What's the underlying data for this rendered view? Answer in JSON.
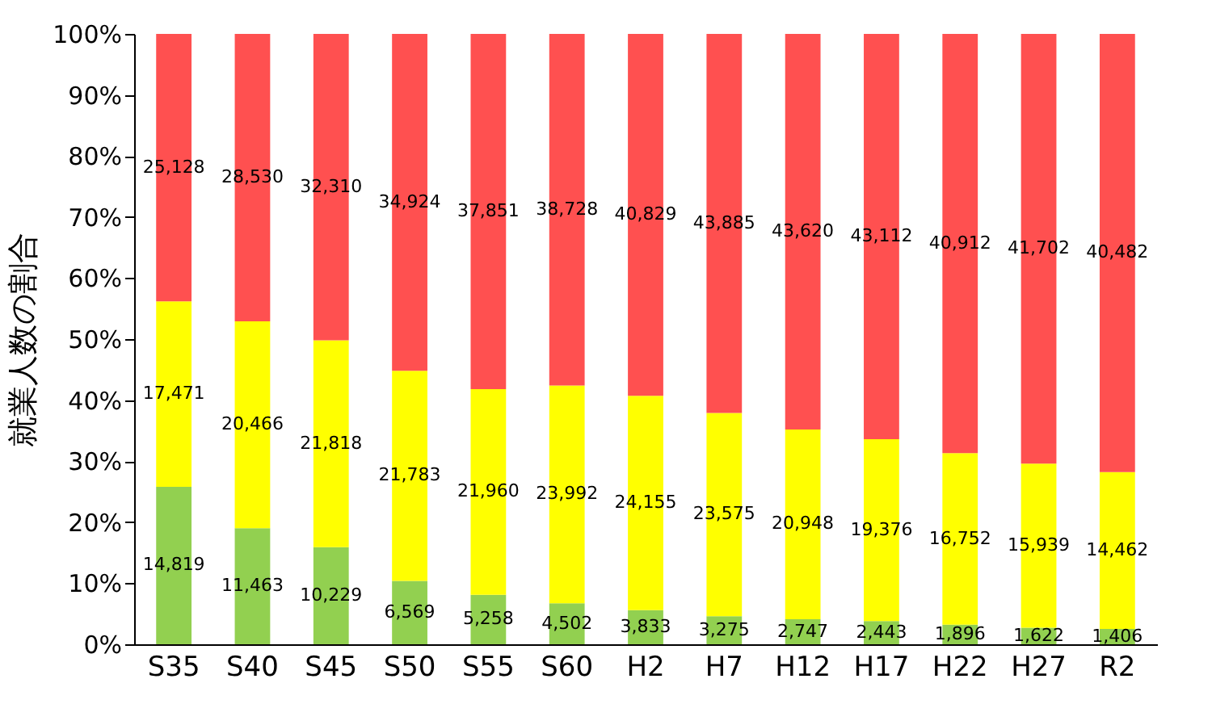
{
  "chart_data": {
    "type": "bar",
    "stacked": true,
    "ylabel": "就業人数の割合",
    "categories": [
      "S35",
      "S40",
      "S45",
      "S50",
      "S55",
      "S60",
      "H2",
      "H7",
      "H12",
      "H17",
      "H22",
      "H27",
      "R2"
    ],
    "series": [
      {
        "color": "#92d050",
        "values": [
          25.8,
          19.0,
          15.9,
          10.4,
          8.1,
          6.7,
          5.6,
          4.6,
          4.1,
          3.8,
          3.2,
          2.7,
          2.5
        ]
      },
      {
        "color": "#ffff00",
        "values": [
          30.4,
          33.9,
          33.9,
          34.4,
          33.7,
          35.7,
          35.1,
          33.3,
          31.1,
          29.8,
          28.1,
          26.9,
          25.7
        ]
      },
      {
        "color": "#ff5050",
        "values": [
          43.8,
          47.1,
          50.2,
          55.2,
          58.2,
          57.6,
          59.3,
          62.1,
          64.8,
          66.4,
          68.7,
          70.4,
          71.8
        ]
      }
    ],
    "annotations": [
      "14,819",
      "11,463",
      "10,229",
      "6,569",
      "5,258",
      "4,502",
      "3,833",
      "3,275",
      "2,747",
      "2,443",
      "1,896",
      "1,622",
      "1,406",
      "17,471",
      "20,466",
      "21,818",
      "21,783",
      "21,960",
      "23,992",
      "24,155",
      "23,575",
      "20,948",
      "19,376",
      "16,752",
      "15,939",
      "14,462",
      "25,128",
      "28,530",
      "32,310",
      "34,924",
      "37,851",
      "38,728",
      "40,829",
      "43,885",
      "43,620",
      "43,112",
      "40,912",
      "41,702",
      "40,482"
    ],
    "ylim": [
      0,
      100
    ],
    "yticks": [
      {
        "value": 0,
        "label": "0%"
      },
      {
        "value": 10,
        "label": "10%"
      },
      {
        "value": 20,
        "label": "20%"
      },
      {
        "value": 30,
        "label": "30%"
      },
      {
        "value": 40,
        "label": "40%"
      },
      {
        "value": 50,
        "label": "50%"
      },
      {
        "value": 60,
        "label": "60%"
      },
      {
        "value": 70,
        "label": "70%"
      },
      {
        "value": 80,
        "label": "80%"
      },
      {
        "value": 90,
        "label": "90%"
      },
      {
        "value": 100,
        "label": "100%"
      }
    ],
    "grid": false,
    "legend": false
  }
}
